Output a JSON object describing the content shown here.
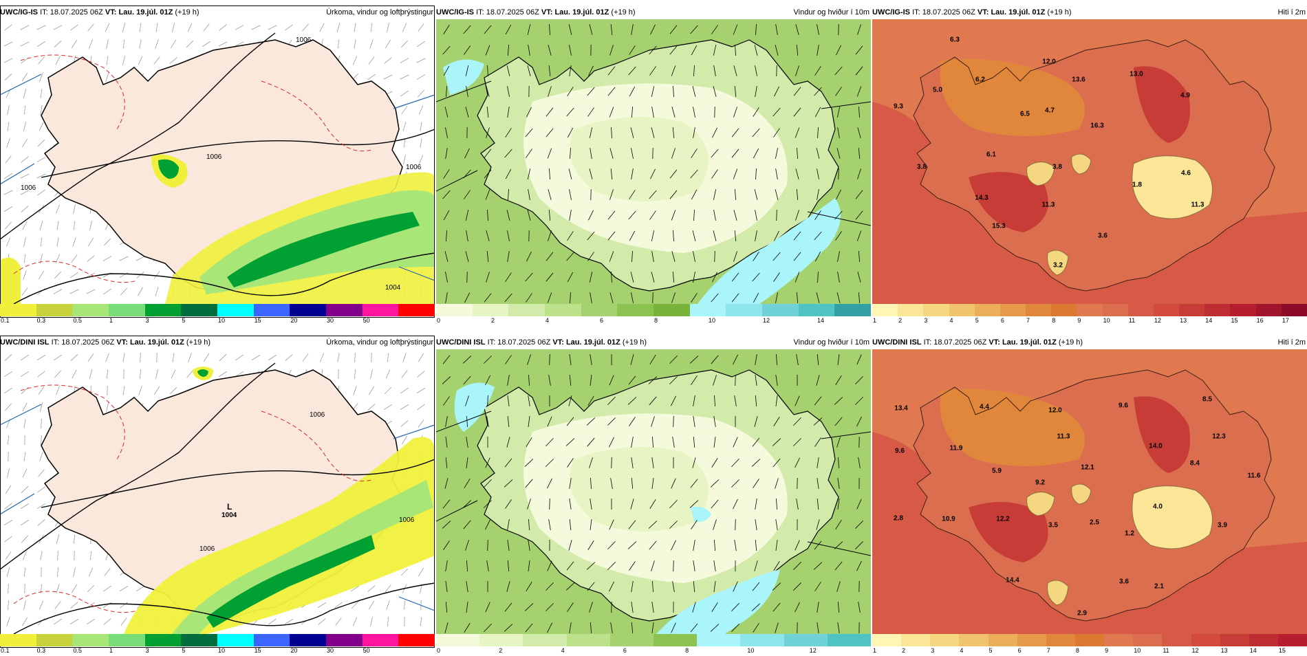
{
  "rows": [
    {
      "model": "UWC/IG-IS",
      "it_label": "IT:",
      "it": "18.07.2025 06Z",
      "vt_label": "VT:",
      "vt": "Lau. 19.júl. 01Z",
      "lead": "(+19 h)",
      "panels": {
        "precip": {
          "title": "Úrkoma, vindur og loftþrýstingur",
          "ticks": [
            "0.1",
            "0.3",
            "0.5",
            "1",
            "3",
            "5",
            "10",
            "15",
            "20",
            "30",
            "50"
          ],
          "colors": [
            "#f0f03c",
            "#c8d23c",
            "#a8e678",
            "#78dc78",
            "#00a032",
            "#006e3c",
            "#00ffff",
            "#3c64ff",
            "#000090",
            "#82008c",
            "#ff14a0",
            "#ff0000"
          ],
          "isobars": [
            "1006",
            "1006",
            "1006",
            "1006",
            "1004"
          ]
        },
        "wind": {
          "title": "Vindur og hviður í 10m",
          "ticks": [
            "0",
            "2",
            "4",
            "6",
            "8",
            "10",
            "12",
            "14"
          ],
          "colors": [
            "#f5fadc",
            "#e6f5c3",
            "#d2ebaa",
            "#bee18c",
            "#a5d26e",
            "#8cc350",
            "#78b43c",
            "#aaf5fa",
            "#8ce6eb",
            "#6ed2d7",
            "#50c3c3",
            "#32a0a5"
          ]
        },
        "temp": {
          "title": "Hiti í 2m",
          "ticks": [
            "1",
            "2",
            "3",
            "4",
            "5",
            "6",
            "7",
            "8",
            "9",
            "10",
            "11",
            "12",
            "13",
            "14",
            "15",
            "16",
            "17"
          ],
          "colors": [
            "#fff5b4",
            "#fae696",
            "#f5d782",
            "#f0c36e",
            "#ebaf5a",
            "#e69b4b",
            "#e1873c",
            "#dc7832",
            "#e07850",
            "#dc6e50",
            "#d75a46",
            "#d24b3c",
            "#c83c37",
            "#be2d32",
            "#b41e2d",
            "#a0142d",
            "#8c0a28"
          ],
          "spots": [
            "6.3",
            "12.0",
            "13.0",
            "5.0",
            "6.2",
            "13.6",
            "4.9",
            "9.3",
            "6.5",
            "4.7",
            "16.3",
            "6.1",
            "3.8",
            "3.8",
            "1.8",
            "4.6",
            "14.3",
            "11.3",
            "11.3",
            "15.3",
            "3.6",
            "3.2"
          ]
        }
      }
    },
    {
      "model": "UWC/DINI ISL",
      "it_label": "IT:",
      "it": "18.07.2025 06Z",
      "vt_label": "VT:",
      "vt": "Lau. 19.júl. 01Z",
      "lead": "(+19 h)",
      "panels": {
        "precip": {
          "title": "Úrkoma, vindur og loftþrýstingur",
          "ticks": [
            "0.1",
            "0.3",
            "0.5",
            "1",
            "3",
            "5",
            "10",
            "15",
            "20",
            "30",
            "50"
          ],
          "colors": [
            "#f0f03c",
            "#c8d23c",
            "#a8e678",
            "#78dc78",
            "#00a032",
            "#006e3c",
            "#00ffff",
            "#3c64ff",
            "#000090",
            "#82008c",
            "#ff14a0",
            "#ff0000"
          ],
          "low_letter": "L",
          "low_value": "1004",
          "isobars": [
            "1006",
            "1006",
            "1006"
          ]
        },
        "wind": {
          "title": "Vindur og hviður í 10m",
          "ticks": [
            "0",
            "2",
            "4",
            "6",
            "8",
            "10",
            "12"
          ],
          "colors": [
            "#f5fadc",
            "#e6f5c3",
            "#d2ebaa",
            "#bee18c",
            "#a5d26e",
            "#8cc350",
            "#aaf5fa",
            "#8ce6eb",
            "#6ed2d7",
            "#50c3c3"
          ]
        },
        "temp": {
          "title": "Hiti í 2m",
          "ticks": [
            "1",
            "2",
            "3",
            "4",
            "5",
            "6",
            "7",
            "8",
            "9",
            "10",
            "11",
            "12",
            "13",
            "14",
            "15"
          ],
          "colors": [
            "#fff5b4",
            "#fae696",
            "#f5d782",
            "#f0c36e",
            "#ebaf5a",
            "#e69b4b",
            "#e1873c",
            "#dc7832",
            "#e07850",
            "#dc6e50",
            "#d75a46",
            "#d24b3c",
            "#c83c37",
            "#be2d32",
            "#b41e2d"
          ],
          "spots": [
            "13.4",
            "4.4",
            "12.0",
            "9.6",
            "8.5",
            "11.3",
            "9.6",
            "11.9",
            "14.0",
            "12.3",
            "5.9",
            "9.2",
            "12.1",
            "8.4",
            "11.6",
            "4.0",
            "2.8",
            "10.9",
            "12.2",
            "3.5",
            "2.5",
            "1.2",
            "3.9",
            "14.4",
            "3.6",
            "2.1",
            "2.9"
          ]
        }
      }
    }
  ]
}
